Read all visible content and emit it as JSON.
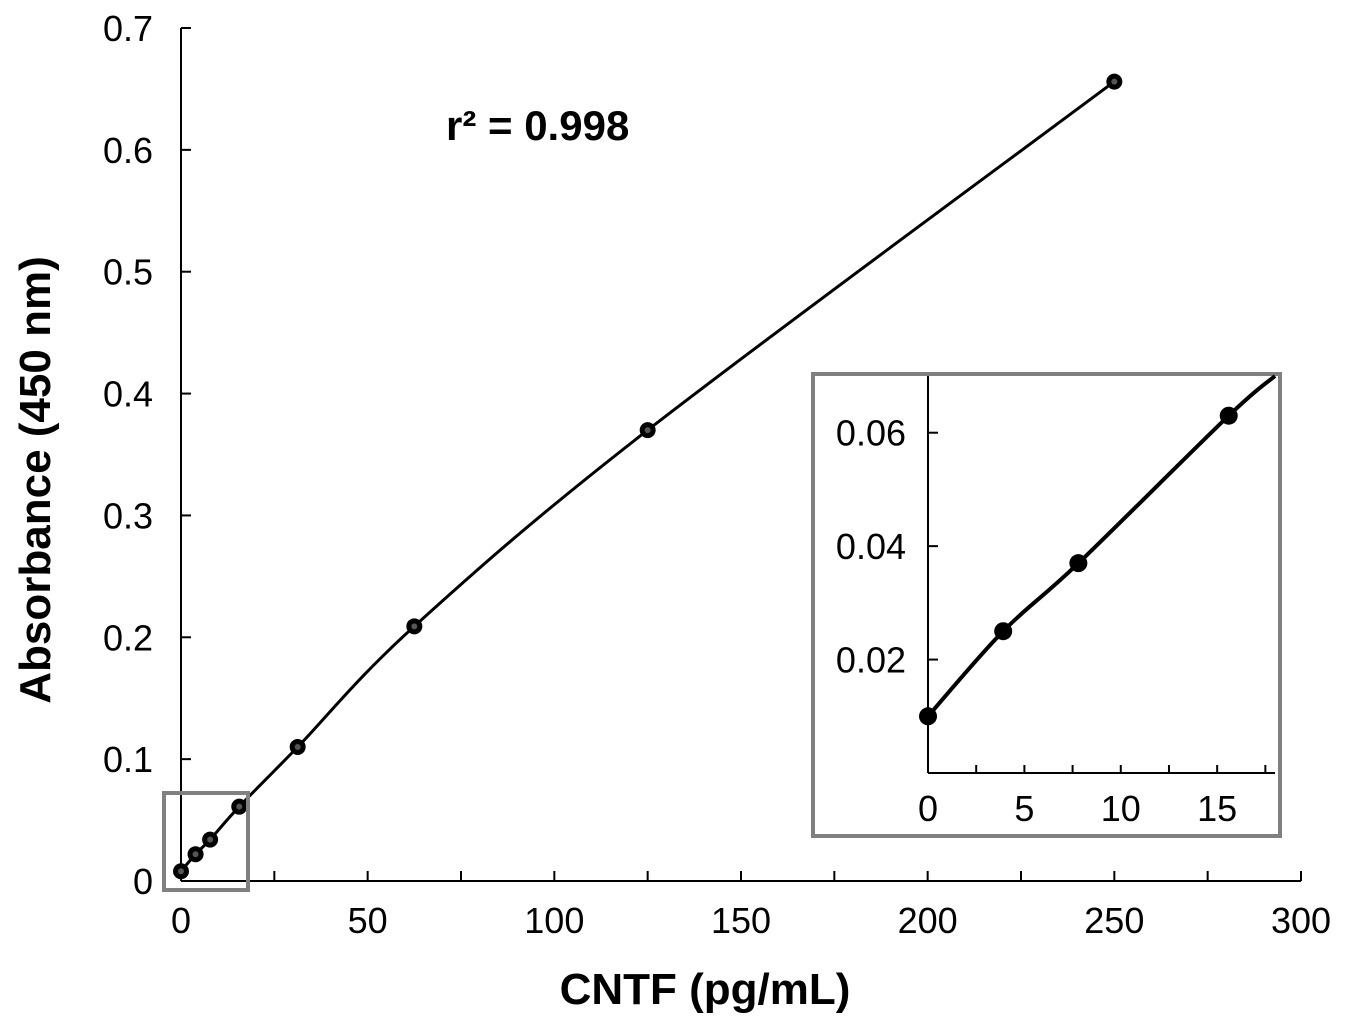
{
  "chart_data": [
    {
      "type": "line",
      "xlabel": "CNTF (pg/mL)",
      "ylabel": "Absorbance (450 nm)",
      "xlim": [
        0,
        300
      ],
      "ylim": [
        0,
        0.7
      ],
      "xticks": [
        "0",
        "50",
        "100",
        "150",
        "200",
        "250",
        "300"
      ],
      "yticks": [
        "0",
        "0.1",
        "0.2",
        "0.3",
        "0.4",
        "0.5",
        "0.6",
        "0.7"
      ],
      "annotation": "r² = 0.998",
      "grid": false,
      "series": [
        {
          "x": [
            0,
            3.9,
            7.8,
            15.6,
            31.25,
            62.5,
            125,
            250
          ],
          "y": [
            0.008,
            0.022,
            0.034,
            0.061,
            0.11,
            0.209,
            0.37,
            0.656
          ]
        }
      ]
    },
    {
      "type": "line",
      "xlim": [
        0,
        18
      ],
      "ylim": [
        0,
        0.07
      ],
      "xticks": [
        "0",
        "5",
        "10",
        "15"
      ],
      "yticks": [
        "0.02",
        "0.04",
        "0.06"
      ],
      "series": [
        {
          "x": [
            0,
            3.9,
            7.8,
            15.6,
            18
          ],
          "y": [
            0.01,
            0.025,
            0.037,
            0.063,
            0.07
          ]
        }
      ]
    }
  ]
}
